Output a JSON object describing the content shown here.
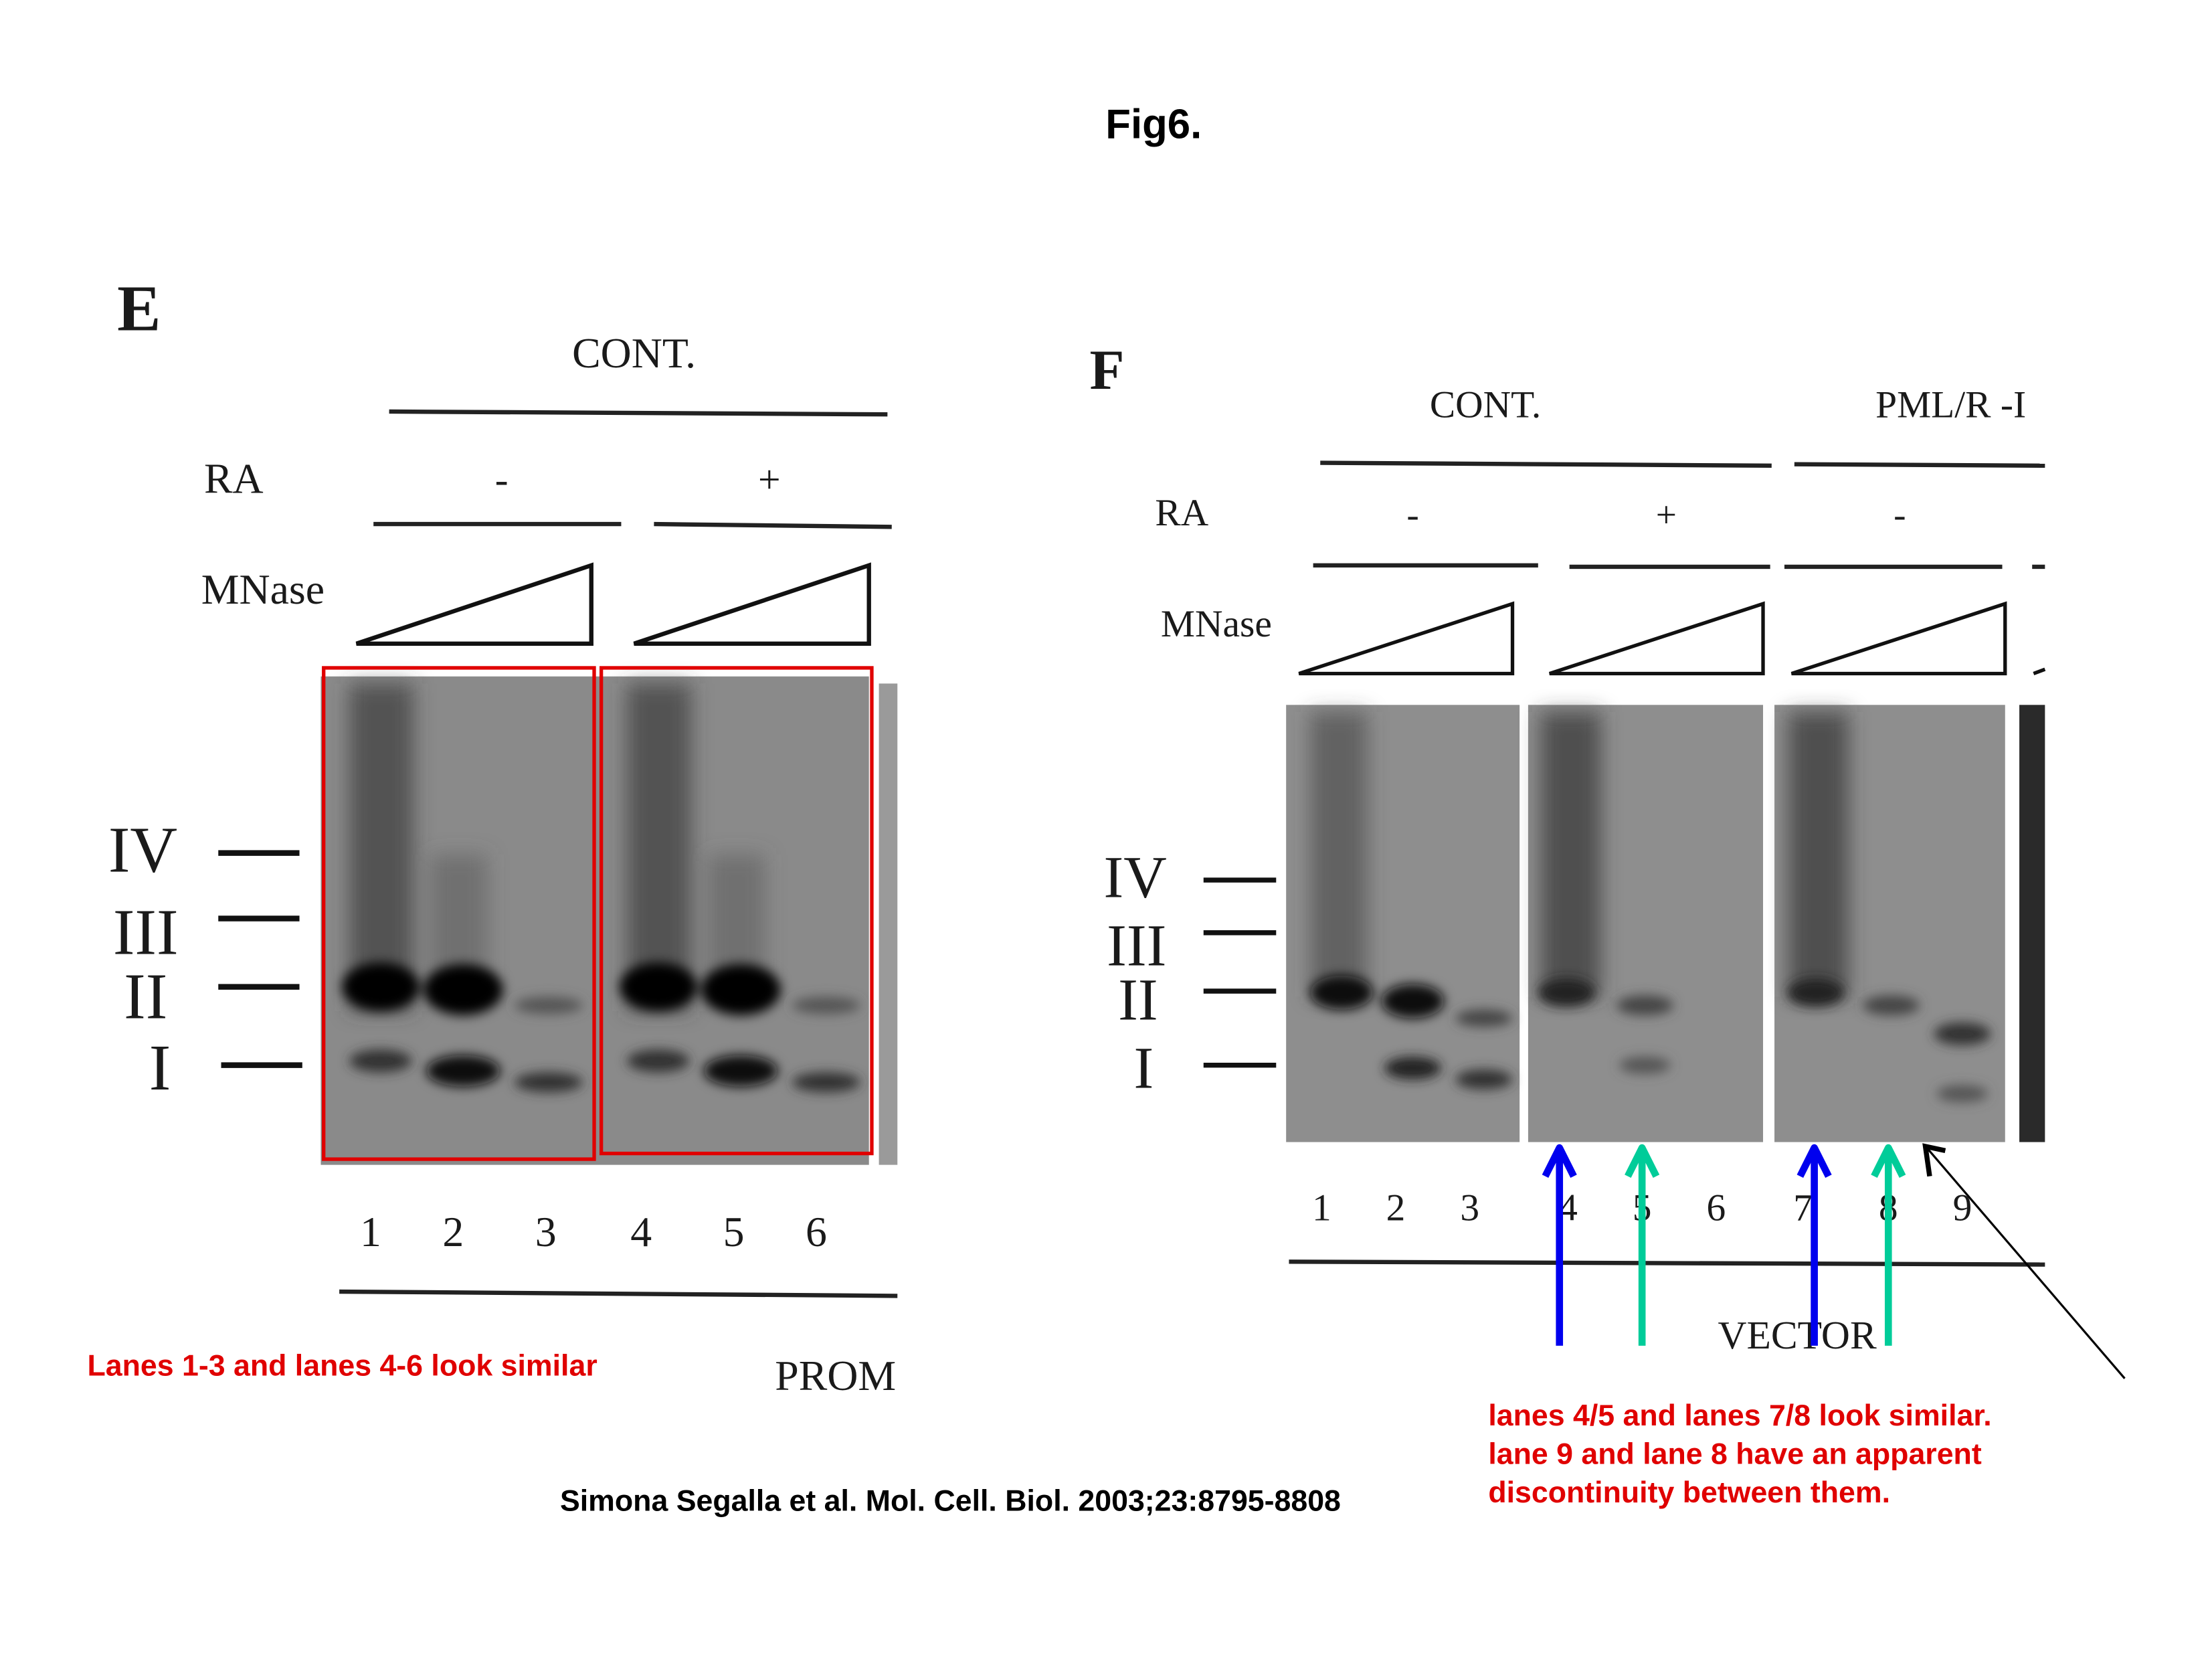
{
  "title": "Fig6.",
  "citation": "Simona Segalla et al. Mol. Cell. Biol. 2003;23:8795-8808",
  "panel_e": {
    "label": "E",
    "group": "CONT.",
    "ra_label": "RA",
    "ra_values": [
      "-",
      "+"
    ],
    "mnase_label": "MNase",
    "markers": [
      "IV",
      "III",
      "II",
      "I"
    ],
    "lanes": [
      "1",
      "2",
      "3",
      "4",
      "5",
      "6"
    ],
    "bottom_label": "PROM",
    "annotation": "Lanes 1-3 and lanes 4-6 look similar",
    "box_color": "#e00000"
  },
  "panel_f": {
    "label": "F",
    "groups": [
      "CONT.",
      "PML/R -I"
    ],
    "ra_label": "RA",
    "ra_values": [
      "-",
      "+",
      "-"
    ],
    "mnase_label": "MNase",
    "markers": [
      "IV",
      "III",
      "II",
      "I"
    ],
    "lanes": [
      "1",
      "2",
      "3",
      "4",
      "5",
      "6",
      "7",
      "8",
      "9"
    ],
    "bottom_label": "VECTOR",
    "annotation_lines": [
      "lanes 4/5 and lanes 7/8 look similar.",
      "lane 9 and lane 8 have an apparent",
      "discontinuity between them."
    ],
    "arrow_colors": {
      "blue": "#0000ee",
      "green": "#00cc99",
      "black": "#000000"
    }
  }
}
